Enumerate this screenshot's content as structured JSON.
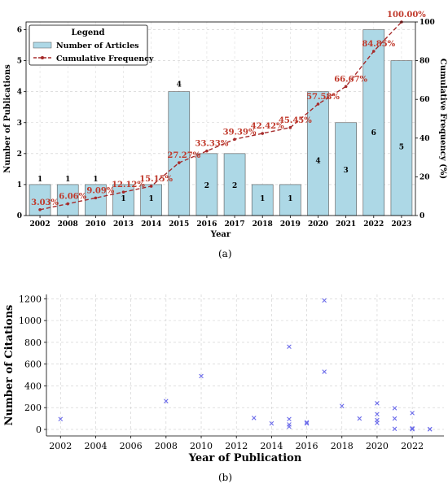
{
  "chart_data": [
    {
      "type": "bar+line",
      "caption": "(a)",
      "categories": [
        "2002",
        "2008",
        "2010",
        "2013",
        "2014",
        "2015",
        "2016",
        "2017",
        "2018",
        "2019",
        "2020",
        "2021",
        "2022",
        "2023"
      ],
      "series": [
        {
          "name": "Number of Articles",
          "type": "bar",
          "values": [
            1,
            1,
            1,
            1,
            1,
            4,
            2,
            2,
            1,
            1,
            4,
            3,
            6,
            5
          ],
          "color": "#add8e6"
        },
        {
          "name": "Cumulative Frequency",
          "type": "line",
          "axis": "right",
          "values": [
            3.03,
            6.06,
            9.09,
            12.12,
            15.15,
            27.27,
            33.33,
            39.39,
            42.42,
            45.45,
            57.58,
            66.67,
            84.85,
            100.0
          ],
          "color": "#a52a2a"
        }
      ],
      "bar_labels": [
        "1",
        "1",
        "1",
        "1",
        "1",
        "4",
        "2",
        "2",
        "1",
        "1",
        "4",
        "3",
        "6",
        "5"
      ],
      "line_labels": [
        "3.03%",
        "6.06%",
        "9.09%",
        "12.12%",
        "15.15%",
        "27.27%",
        "33.33%",
        "39.39%",
        "42.42%",
        "45.45%",
        "57.58%",
        "66.67%",
        "84.85%",
        "100.00%"
      ],
      "xlabel": "Year",
      "ylabel": "Number of Publications",
      "y2label": "Cumulative Frequency (%)",
      "ylim": [
        0,
        6.25
      ],
      "y2lim": [
        0,
        100
      ],
      "yticks": [
        "0",
        "1",
        "2",
        "3",
        "4",
        "5",
        "6"
      ],
      "y2ticks": [
        "0",
        "20",
        "40",
        "60",
        "80",
        "100"
      ],
      "legend": {
        "title": "Legend",
        "placement": "top-left"
      },
      "grid": true
    },
    {
      "type": "scatter",
      "caption": "(b)",
      "xlabel": "Year of Publication",
      "ylabel": "Number of Citations",
      "xlim": [
        2001.2,
        2023.8
      ],
      "ylim": [
        -60,
        1240
      ],
      "xticks": [
        "2002",
        "2004",
        "2006",
        "2008",
        "2010",
        "2012",
        "2014",
        "2016",
        "2018",
        "2020",
        "2022"
      ],
      "yticks": [
        "0",
        "200",
        "400",
        "600",
        "800",
        "1000",
        "1200"
      ],
      "marker_color": "#6b6bea",
      "grid": true,
      "points": [
        {
          "x": 2002,
          "y": 95
        },
        {
          "x": 2008,
          "y": 260
        },
        {
          "x": 2010,
          "y": 490
        },
        {
          "x": 2013,
          "y": 105
        },
        {
          "x": 2014,
          "y": 55
        },
        {
          "x": 2015,
          "y": 760
        },
        {
          "x": 2015,
          "y": 95
        },
        {
          "x": 2015,
          "y": 45
        },
        {
          "x": 2015,
          "y": 25
        },
        {
          "x": 2016,
          "y": 65
        },
        {
          "x": 2016,
          "y": 55
        },
        {
          "x": 2017,
          "y": 1185
        },
        {
          "x": 2017,
          "y": 530
        },
        {
          "x": 2018,
          "y": 215
        },
        {
          "x": 2019,
          "y": 100
        },
        {
          "x": 2020,
          "y": 240
        },
        {
          "x": 2020,
          "y": 140
        },
        {
          "x": 2020,
          "y": 85
        },
        {
          "x": 2020,
          "y": 60
        },
        {
          "x": 2021,
          "y": 195
        },
        {
          "x": 2021,
          "y": 100
        },
        {
          "x": 2021,
          "y": 5
        },
        {
          "x": 2022,
          "y": 150
        },
        {
          "x": 2022,
          "y": 10
        },
        {
          "x": 2022,
          "y": 5
        },
        {
          "x": 2022,
          "y": 2
        },
        {
          "x": 2023,
          "y": 3
        },
        {
          "x": 2023,
          "y": 1
        }
      ]
    }
  ]
}
